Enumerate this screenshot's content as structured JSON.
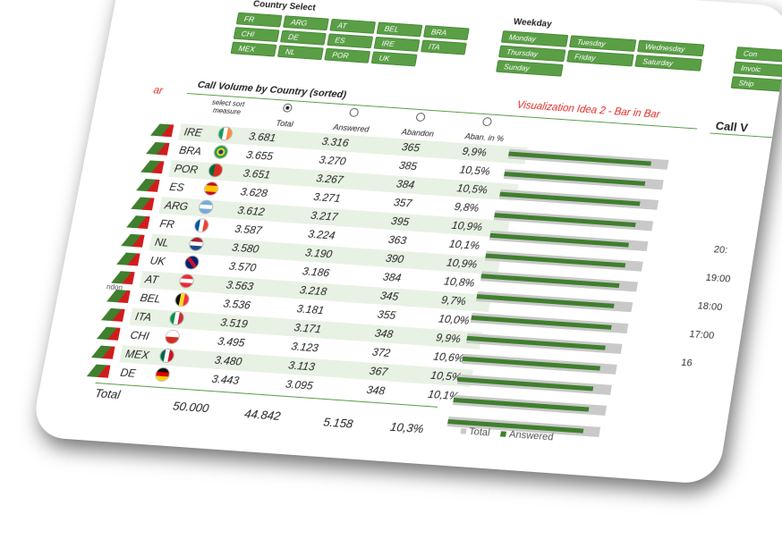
{
  "slicers": {
    "country": {
      "title": "Country Select",
      "items": [
        "FR",
        "ARG",
        "AT",
        "BEL",
        "BRA",
        "CHI",
        "DE",
        "ES",
        "IRE",
        "ITA",
        "MEX",
        "NL",
        "POR",
        "UK"
      ]
    },
    "weekday": {
      "title": "Weekday",
      "items": [
        "Monday",
        "Tuesday",
        "Wednesday",
        "Thursday",
        "Friday",
        "Saturday",
        "Sunday"
      ]
    },
    "third": {
      "items": [
        "Con",
        "Invoic",
        "Ship"
      ]
    }
  },
  "table": {
    "title": "Call Volume by Country (sorted)",
    "sort_label": "select sort measure",
    "columns": [
      "Total",
      "Answered",
      "Abandon",
      "Aban. in %"
    ],
    "selected_sort": 0,
    "rows": [
      {
        "country": "IRE",
        "total": "3.681",
        "answered": "3.316",
        "abandon": "365",
        "pct": "9,9%",
        "flag": "ireland"
      },
      {
        "country": "BRA",
        "total": "3.655",
        "answered": "3.270",
        "abandon": "385",
        "pct": "10,5%",
        "flag": "brazil"
      },
      {
        "country": "POR",
        "total": "3.651",
        "answered": "3.267",
        "abandon": "384",
        "pct": "10,5%",
        "flag": "portugal"
      },
      {
        "country": "ES",
        "total": "3.628",
        "answered": "3.271",
        "abandon": "357",
        "pct": "9,8%",
        "flag": "spain"
      },
      {
        "country": "ARG",
        "total": "3.612",
        "answered": "3.217",
        "abandon": "395",
        "pct": "10,9%",
        "flag": "argentina"
      },
      {
        "country": "FR",
        "total": "3.587",
        "answered": "3.224",
        "abandon": "363",
        "pct": "10,1%",
        "flag": "france"
      },
      {
        "country": "NL",
        "total": "3.580",
        "answered": "3.190",
        "abandon": "390",
        "pct": "10,9%",
        "flag": "netherlands"
      },
      {
        "country": "UK",
        "total": "3.570",
        "answered": "3.186",
        "abandon": "384",
        "pct": "10,8%",
        "flag": "uk"
      },
      {
        "country": "AT",
        "total": "3.563",
        "answered": "3.218",
        "abandon": "345",
        "pct": "9,7%",
        "flag": "austria"
      },
      {
        "country": "BEL",
        "total": "3.536",
        "answered": "3.181",
        "abandon": "355",
        "pct": "10,0%",
        "flag": "belgium"
      },
      {
        "country": "ITA",
        "total": "3.519",
        "answered": "3.171",
        "abandon": "348",
        "pct": "9,9%",
        "flag": "italy"
      },
      {
        "country": "CHI",
        "total": "3.495",
        "answered": "3.123",
        "abandon": "372",
        "pct": "10,6%",
        "flag": "chile"
      },
      {
        "country": "MEX",
        "total": "3.480",
        "answered": "3.113",
        "abandon": "367",
        "pct": "10,5%",
        "flag": "mexico"
      },
      {
        "country": "DE",
        "total": "3.443",
        "answered": "3.095",
        "abandon": "348",
        "pct": "10,1%",
        "flag": "germany"
      }
    ],
    "total": {
      "label": "Total",
      "total": "50.000",
      "answered": "44.842",
      "abandon": "5.158",
      "pct": "10,3%"
    }
  },
  "viz": {
    "title": "Visualization Idea 2 - Bar in Bar",
    "legend_total": "Total",
    "legend_answered": "Answered"
  },
  "right_panel": {
    "title": "Call V",
    "times": [
      "20:",
      "19:00",
      "18:00",
      "17:00",
      "16"
    ]
  },
  "left_panel": {
    "title_fragment": "ar",
    "footer_fragment": "ndon"
  },
  "chart_data": {
    "type": "bar",
    "title": "Visualization Idea 2 - Bar in Bar",
    "categories": [
      "IRE",
      "BRA",
      "POR",
      "ES",
      "ARG",
      "FR",
      "NL",
      "UK",
      "AT",
      "BEL",
      "ITA",
      "CHI",
      "MEX",
      "DE"
    ],
    "series": [
      {
        "name": "Total",
        "values": [
          3681,
          3655,
          3651,
          3628,
          3612,
          3587,
          3580,
          3570,
          3563,
          3536,
          3519,
          3495,
          3480,
          3443
        ]
      },
      {
        "name": "Answered",
        "values": [
          3316,
          3270,
          3267,
          3271,
          3217,
          3224,
          3190,
          3186,
          3218,
          3181,
          3171,
          3123,
          3113,
          3095
        ]
      }
    ],
    "xlim": [
      0,
      3700
    ]
  },
  "colors": {
    "accent_green": "#5a9e46",
    "bar_answered": "#3f7f2e",
    "bar_total": "#c9c9c9",
    "viz_title_red": "#e0281f",
    "row_band": "#e8f2e4"
  }
}
